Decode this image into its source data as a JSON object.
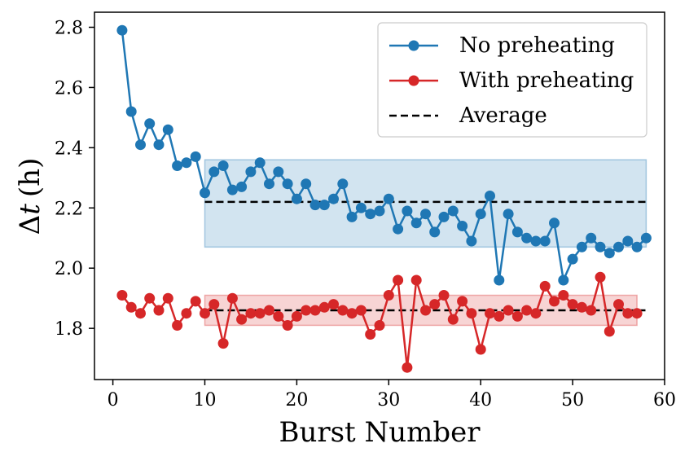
{
  "chart_data": {
    "type": "line",
    "title": "",
    "xlabel": "Burst Number",
    "ylabel": "Δt (h)",
    "ylabel_symbol": "Δ",
    "ylabel_var": "t",
    "ylabel_unit": "(h)",
    "xlim": [
      -2,
      60
    ],
    "ylim": [
      1.63,
      2.85
    ],
    "xticks": [
      0,
      10,
      20,
      30,
      40,
      50,
      60
    ],
    "yticks": [
      1.8,
      2.0,
      2.2,
      2.4,
      2.6,
      2.8
    ],
    "ytick_labels": [
      "1.8",
      "2.0",
      "2.2",
      "2.4",
      "2.6",
      "2.8"
    ],
    "grid": false,
    "legend_position": "top-right",
    "legend": [
      "No preheating",
      "With preheating",
      "Average"
    ],
    "series": [
      {
        "name": "No preheating",
        "color": "#1f77b4",
        "x": [
          1,
          2,
          3,
          4,
          5,
          6,
          7,
          8,
          9,
          10,
          11,
          12,
          13,
          14,
          15,
          16,
          17,
          18,
          19,
          20,
          21,
          22,
          23,
          24,
          25,
          26,
          27,
          28,
          29,
          30,
          31,
          32,
          33,
          34,
          35,
          36,
          37,
          38,
          39,
          40,
          41,
          42,
          43,
          44,
          45,
          46,
          47,
          48,
          49,
          50,
          51,
          52,
          53,
          54,
          55,
          56,
          57,
          58
        ],
        "y": [
          2.79,
          2.52,
          2.41,
          2.48,
          2.41,
          2.46,
          2.34,
          2.35,
          2.37,
          2.25,
          2.32,
          2.34,
          2.26,
          2.27,
          2.32,
          2.35,
          2.28,
          2.32,
          2.28,
          2.23,
          2.28,
          2.21,
          2.21,
          2.23,
          2.28,
          2.17,
          2.2,
          2.18,
          2.19,
          2.23,
          2.13,
          2.19,
          2.15,
          2.18,
          2.12,
          2.17,
          2.19,
          2.14,
          2.09,
          2.18,
          2.24,
          1.96,
          2.18,
          2.12,
          2.1,
          2.09,
          2.09,
          2.15,
          1.96,
          2.03,
          2.07,
          2.1,
          2.07,
          2.05,
          2.07,
          2.09,
          2.07,
          2.1
        ]
      },
      {
        "name": "With preheating",
        "color": "#d62728",
        "x": [
          1,
          2,
          3,
          4,
          5,
          6,
          7,
          8,
          9,
          10,
          11,
          12,
          13,
          14,
          15,
          16,
          17,
          18,
          19,
          20,
          21,
          22,
          23,
          24,
          25,
          26,
          27,
          28,
          29,
          30,
          31,
          32,
          33,
          34,
          35,
          36,
          37,
          38,
          39,
          40,
          41,
          42,
          43,
          44,
          45,
          46,
          47,
          48,
          49,
          50,
          51,
          52,
          53,
          54,
          55,
          56,
          57
        ],
        "y": [
          1.91,
          1.87,
          1.85,
          1.9,
          1.86,
          1.9,
          1.81,
          1.85,
          1.89,
          1.85,
          1.88,
          1.75,
          1.9,
          1.83,
          1.85,
          1.85,
          1.86,
          1.84,
          1.81,
          1.84,
          1.86,
          1.86,
          1.87,
          1.88,
          1.86,
          1.85,
          1.86,
          1.78,
          1.81,
          1.91,
          1.96,
          1.67,
          1.96,
          1.86,
          1.88,
          1.91,
          1.83,
          1.89,
          1.85,
          1.73,
          1.85,
          1.84,
          1.86,
          1.84,
          1.86,
          1.85,
          1.94,
          1.89,
          1.91,
          1.88,
          1.87,
          1.86,
          1.97,
          1.79,
          1.88,
          1.85,
          1.85
        ]
      }
    ],
    "averages": [
      {
        "name": "Average",
        "series": "No preheating",
        "x_range": [
          10,
          58
        ],
        "value": 2.22,
        "band": [
          2.07,
          2.36
        ],
        "band_color": "#1f77b4"
      },
      {
        "name": "Average",
        "series": "With preheating",
        "x_range": [
          10,
          58
        ],
        "value": 1.86,
        "band": [
          1.81,
          1.91
        ],
        "band_x_range": [
          10,
          57
        ],
        "band_color": "#d62728"
      }
    ]
  }
}
